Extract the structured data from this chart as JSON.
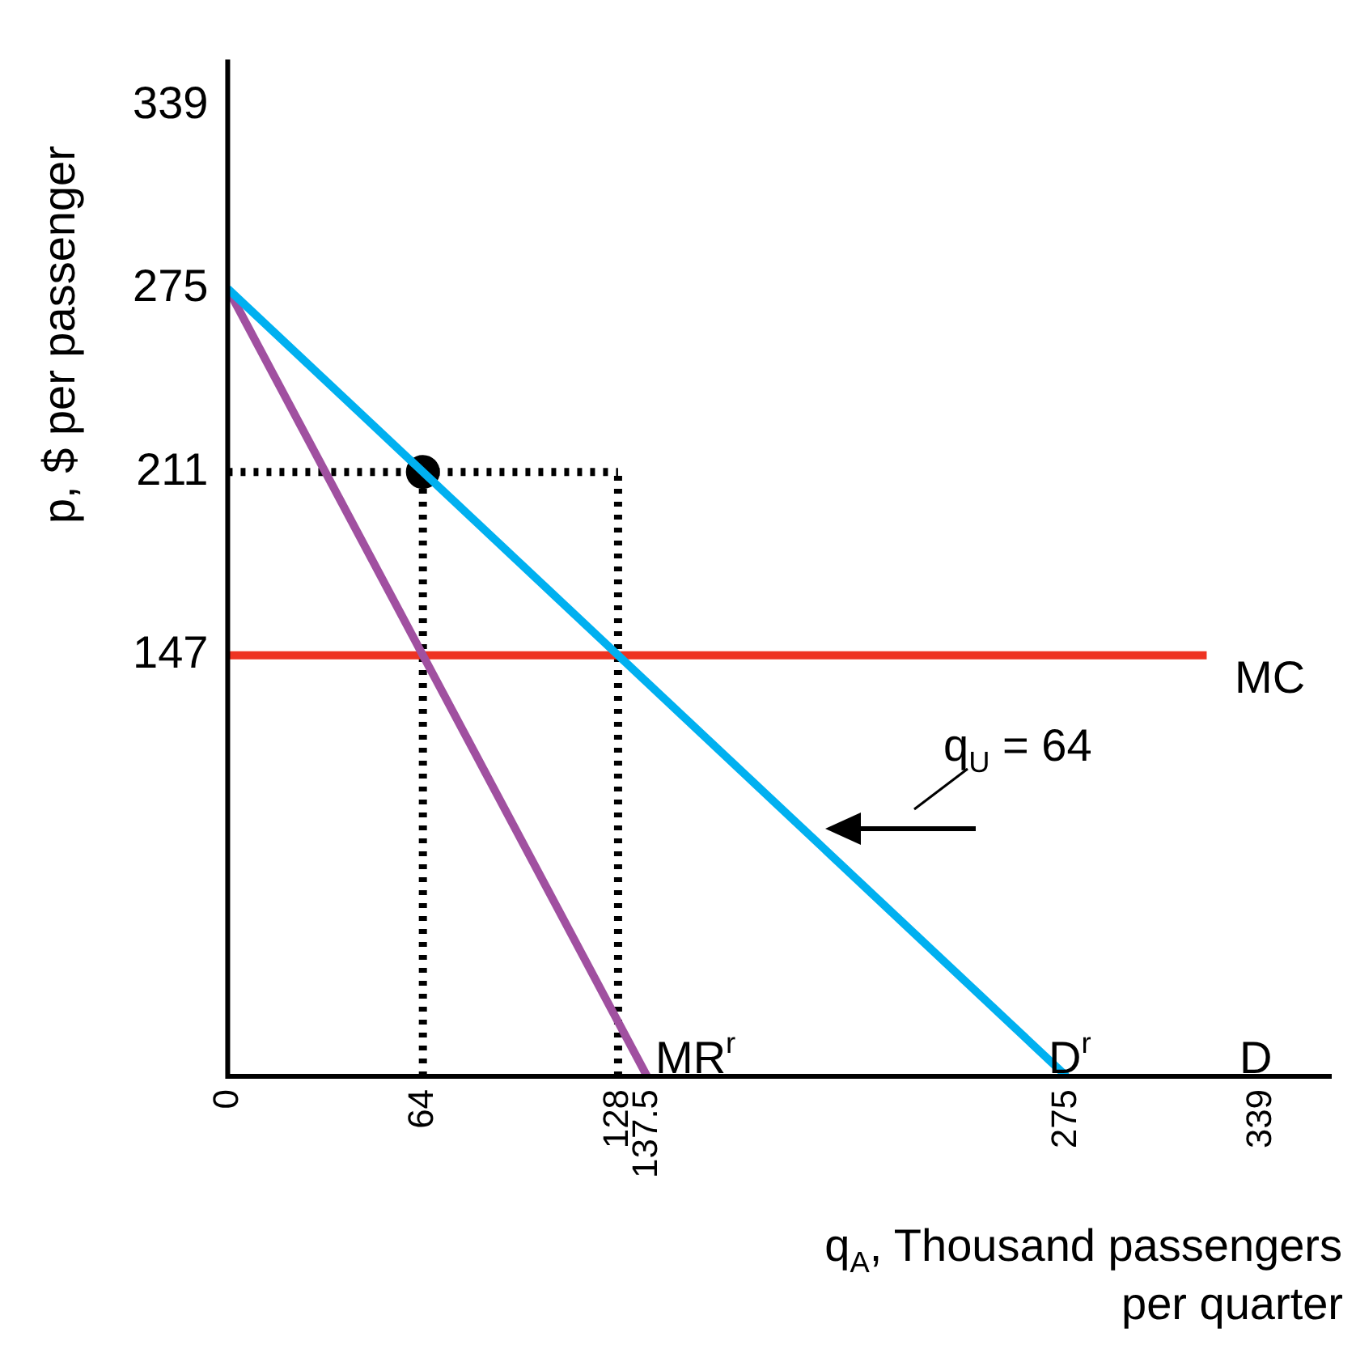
{
  "chart_data": {
    "type": "line",
    "xlabel": "q$_{A}$, Thousand passengers per quarter",
    "ylabel": "p, $ per passenger",
    "xlim": [
      0,
      362
    ],
    "ylim": [
      0,
      355
    ],
    "xticks": [
      0,
      64,
      128,
      137.5,
      275,
      339
    ],
    "yticks": [
      147,
      211,
      275,
      339
    ],
    "series": [
      {
        "color": "#00b0f0",
        "x": [
          0,
          275
        ],
        "values": [
          275,
          0
        ]
      },
      {
        "color": "#a050a0",
        "x": [
          0,
          137.5
        ],
        "values": [
          275,
          0
        ]
      },
      {
        "color": "#ee3322",
        "x": [
          0,
          321
        ],
        "values": [
          147,
          147
        ]
      },
      {
        "color": "#000000",
        "x": [
          0,
          128
        ],
        "values": [
          211,
          211
        ],
        "line_style": "dotted"
      },
      {
        "color": "#000000",
        "x": [
          64,
          64
        ],
        "values": [
          0,
          211
        ],
        "line_style": "dotted"
      },
      {
        "color": "#000000",
        "x": [
          128,
          128
        ],
        "values": [
          0,
          211
        ],
        "line_style": "dotted"
      },
      {
        "type": "scatter",
        "marker": "circle",
        "color": "#000000",
        "x": [
          64
        ],
        "values": [
          211
        ]
      }
    ],
    "annotations": [
      "MC",
      "MR$^{r}$",
      "D$^{r}$",
      "D",
      "q$_{U}$ = 64"
    ]
  }
}
